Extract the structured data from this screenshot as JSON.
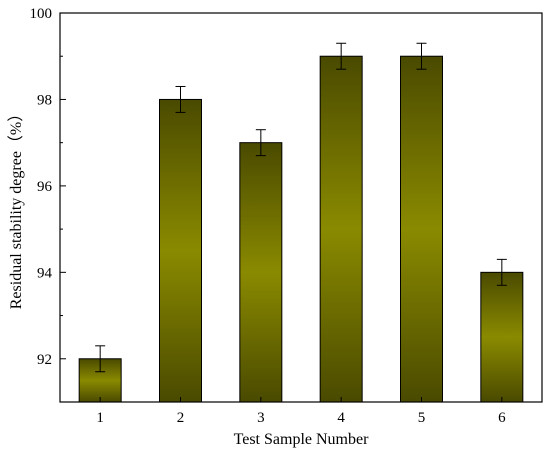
{
  "chart_data": {
    "type": "bar",
    "xlabel": "Test Sample Number",
    "ylabel": "Residual stability degree（%）",
    "categories": [
      "1",
      "2",
      "3",
      "4",
      "5",
      "6"
    ],
    "values": [
      92,
      98,
      97,
      99,
      99,
      94
    ],
    "error": [
      0.3,
      0.3,
      0.3,
      0.3,
      0.3,
      0.3
    ],
    "ylim": [
      91,
      100
    ],
    "yticks": [
      92,
      94,
      96,
      98,
      100
    ],
    "ytick_labels": [
      "92",
      "94",
      "96",
      "98",
      "100"
    ],
    "grid": false,
    "legend": "none",
    "colors": {
      "bar_center": "#8a8a00",
      "bar_edge": "#4a4a00",
      "outline": "#000000"
    }
  }
}
